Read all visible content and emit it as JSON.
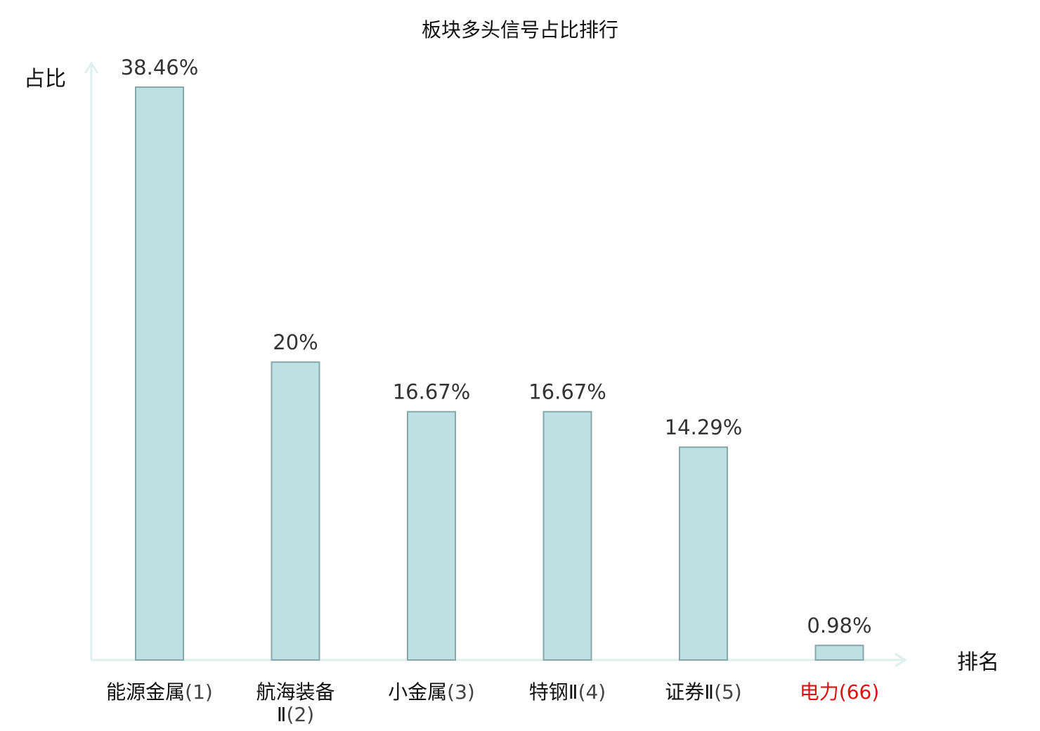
{
  "chart_data": {
    "type": "bar",
    "title": "板块多头信号占比排行",
    "ylabel": "占比",
    "xlabel": "排名",
    "ylim": [
      0,
      40
    ],
    "grid": false,
    "categories": [
      {
        "name": "能源金属",
        "rank": "(1)",
        "highlight": false
      },
      {
        "name": "航海装备Ⅱ",
        "rank": "(2)",
        "highlight": false
      },
      {
        "name": "小金属",
        "rank": "(3)",
        "highlight": false
      },
      {
        "name": "特钢Ⅱ",
        "rank": "(4)",
        "highlight": false
      },
      {
        "name": "证券Ⅱ",
        "rank": "(5)",
        "highlight": false
      },
      {
        "name": "电力",
        "rank": "(66)",
        "highlight": true
      }
    ],
    "values": [
      38.46,
      20,
      16.67,
      16.67,
      14.29,
      0.98
    ],
    "value_labels": [
      "38.46%",
      "20%",
      "16.67%",
      "16.67%",
      "14.29%",
      "0.98%"
    ],
    "colors": {
      "bar_fill": "#bde0e3",
      "bar_stroke": "#86a8ab",
      "axis": "#ddf0ee",
      "highlight_text": "#dd1111",
      "text": "#111111",
      "value_text": "#333333"
    }
  }
}
